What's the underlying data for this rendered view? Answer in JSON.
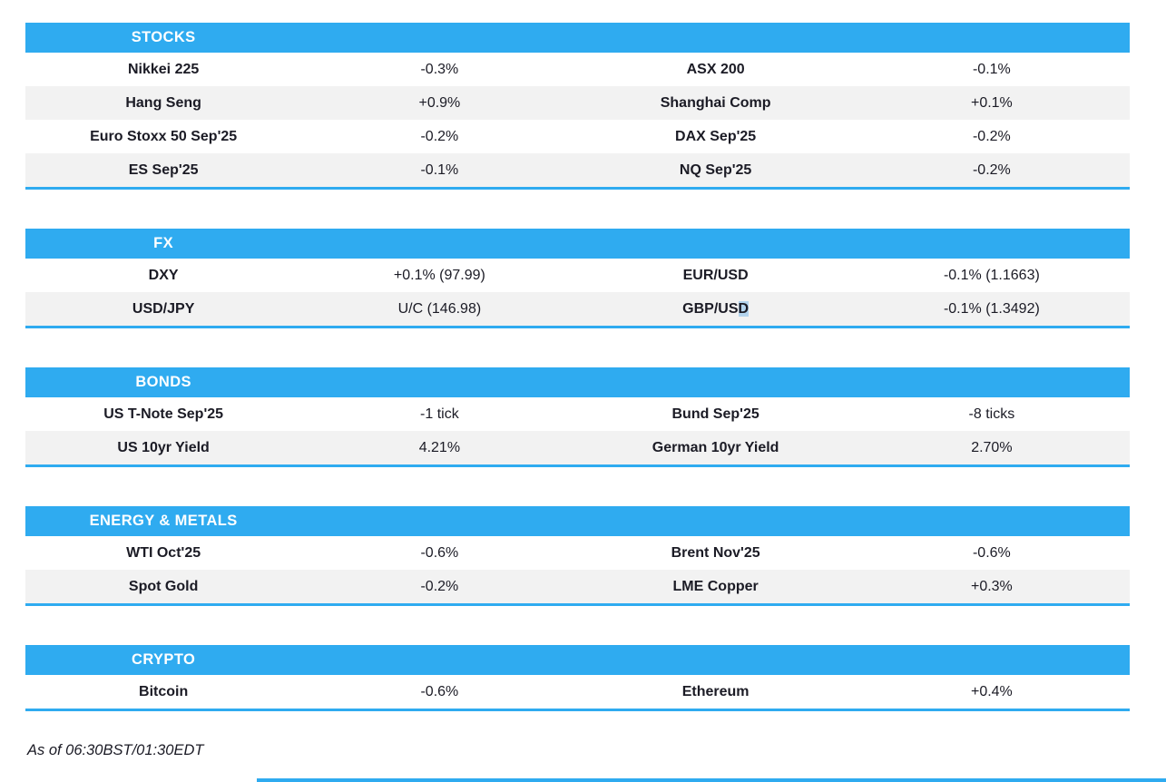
{
  "colors": {
    "accent_blue": "#2fabf0",
    "stripe_gray": "#f2f2f2",
    "selection_blue": "#b3d4ee",
    "text_ink": "#1b1b25"
  },
  "sections": [
    {
      "title": "STOCKS",
      "rows": [
        [
          "Nikkei 225",
          "-0.3%",
          "ASX 200",
          "-0.1%"
        ],
        [
          "Hang Seng",
          "+0.9%",
          "Shanghai Comp",
          "+0.1%"
        ],
        [
          "Euro Stoxx 50 Sep'25",
          "-0.2%",
          "DAX Sep'25",
          "-0.2%"
        ],
        [
          "ES Sep'25",
          "-0.1%",
          "NQ Sep'25",
          "-0.2%"
        ]
      ]
    },
    {
      "title": "FX",
      "rows": [
        [
          "DXY",
          "+0.1% (97.99)",
          "EUR/USD",
          "-0.1% (1.1663)"
        ],
        [
          "USD/JPY",
          "U/C (146.98)",
          "GBP/USD",
          "-0.1% (1.3492)"
        ]
      ]
    },
    {
      "title": "BONDS",
      "rows": [
        [
          "US T-Note Sep'25",
          "-1 tick",
          "Bund Sep'25",
          "-8 ticks"
        ],
        [
          "US 10yr Yield",
          "4.21%",
          "German 10yr Yield",
          "2.70%"
        ]
      ]
    },
    {
      "title": "ENERGY & METALS",
      "rows": [
        [
          "WTI Oct'25",
          "-0.6%",
          "Brent Nov'25",
          "-0.6%"
        ],
        [
          "Spot Gold",
          "-0.2%",
          "LME Copper",
          "+0.3%"
        ]
      ]
    },
    {
      "title": "CRYPTO",
      "rows": [
        [
          "Bitcoin",
          "-0.6%",
          "Ethereum",
          "+0.4%"
        ]
      ]
    }
  ],
  "selection": {
    "section_index": 1,
    "row_index": 1,
    "col_index": 2,
    "char_index": 6,
    "note": "text-selection highlight on the letter D of GBP/USD"
  },
  "footer": {
    "as_of": "As of 06:30BST/01:30EDT"
  }
}
